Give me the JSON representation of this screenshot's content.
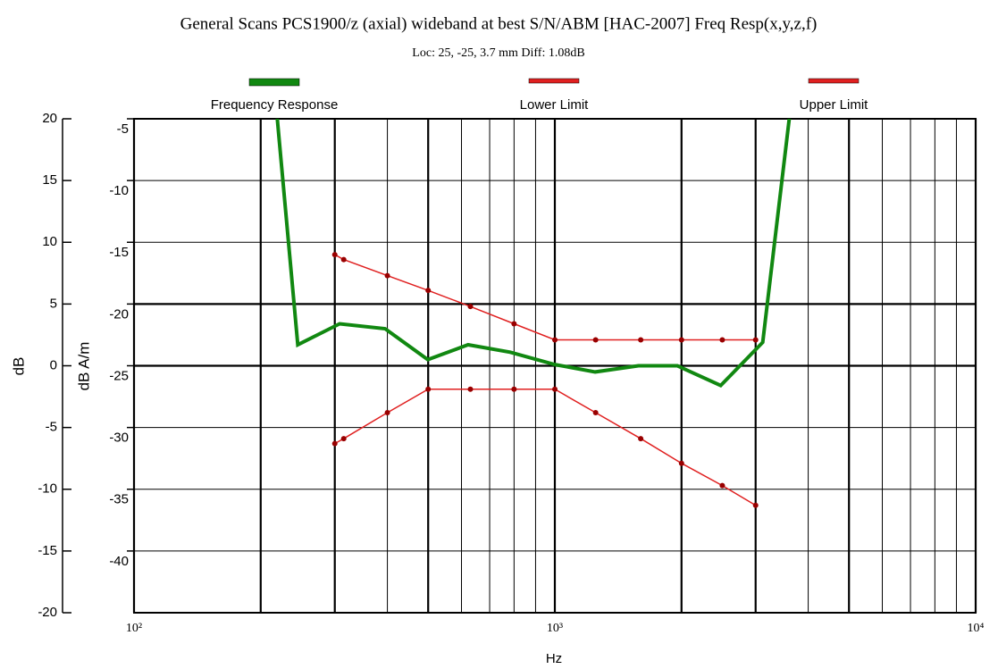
{
  "chart_data": {
    "type": "line",
    "title": "General Scans PCS1900/z (axial) wideband at best S/N/ABM [HAC-2007] Freq Resp(x,y,z,f)",
    "subtitle": "Loc: 25, -25, 3.7 mm Diff: 1.08dB",
    "xlabel": "Hz",
    "ylabel": "dB",
    "y2label": "dB A/m",
    "xscale": "log",
    "xlim": [
      100,
      10000
    ],
    "xticks": [
      {
        "value": 100,
        "label": "10²"
      },
      {
        "value": 1000,
        "label": "10³"
      },
      {
        "value": 10000,
        "label": "10⁴"
      }
    ],
    "xminor_ticks": [
      200,
      300,
      400,
      500,
      600,
      700,
      800,
      900,
      2000,
      3000,
      4000,
      5000,
      6000,
      7000,
      8000,
      9000
    ],
    "ylim": [
      -20,
      20
    ],
    "yticks": [
      20,
      15,
      10,
      5,
      0,
      -5,
      -10,
      -15,
      -20
    ],
    "y2lim": [
      -45,
      -5
    ],
    "y2ticks": [
      -5,
      -10,
      -15,
      -20,
      -25,
      -30,
      -35,
      -40
    ],
    "grid": true,
    "legend": "top",
    "series": [
      {
        "name": "Frequency Response",
        "color": "#118811",
        "axis": "y2",
        "markers": false,
        "x": [
          219,
          245,
          308,
          395,
          499,
          622,
          783,
          1000,
          1247,
          1580,
          1955,
          2478,
          3119,
          3606
        ],
        "values": [
          -5,
          -23.3,
          -21.6,
          -22.0,
          -24.5,
          -23.3,
          -23.9,
          -24.9,
          -25.5,
          -25.0,
          -25.0,
          -26.6,
          -23.1,
          -5
        ]
      },
      {
        "name": "Lower Limit",
        "color": "#e02020",
        "axis": "y2",
        "markers": true,
        "x": [
          300,
          315,
          400,
          500,
          630,
          800,
          1000,
          1250,
          1600,
          2000,
          2500,
          3000
        ],
        "values": [
          -31.3,
          -30.9,
          -28.8,
          -26.9,
          -26.9,
          -26.9,
          -26.9,
          -28.8,
          -30.9,
          -32.9,
          -34.7,
          -36.3
        ]
      },
      {
        "name": "Upper Limit",
        "color": "#e02020",
        "axis": "y2",
        "markers": true,
        "x": [
          300,
          315,
          400,
          500,
          630,
          800,
          1000,
          1250,
          1600,
          2000,
          2500,
          3000
        ],
        "values": [
          -16.0,
          -16.4,
          -17.7,
          -18.9,
          -20.2,
          -21.6,
          -22.9,
          -22.9,
          -22.9,
          -22.9,
          -22.9,
          -22.9
        ]
      }
    ]
  }
}
